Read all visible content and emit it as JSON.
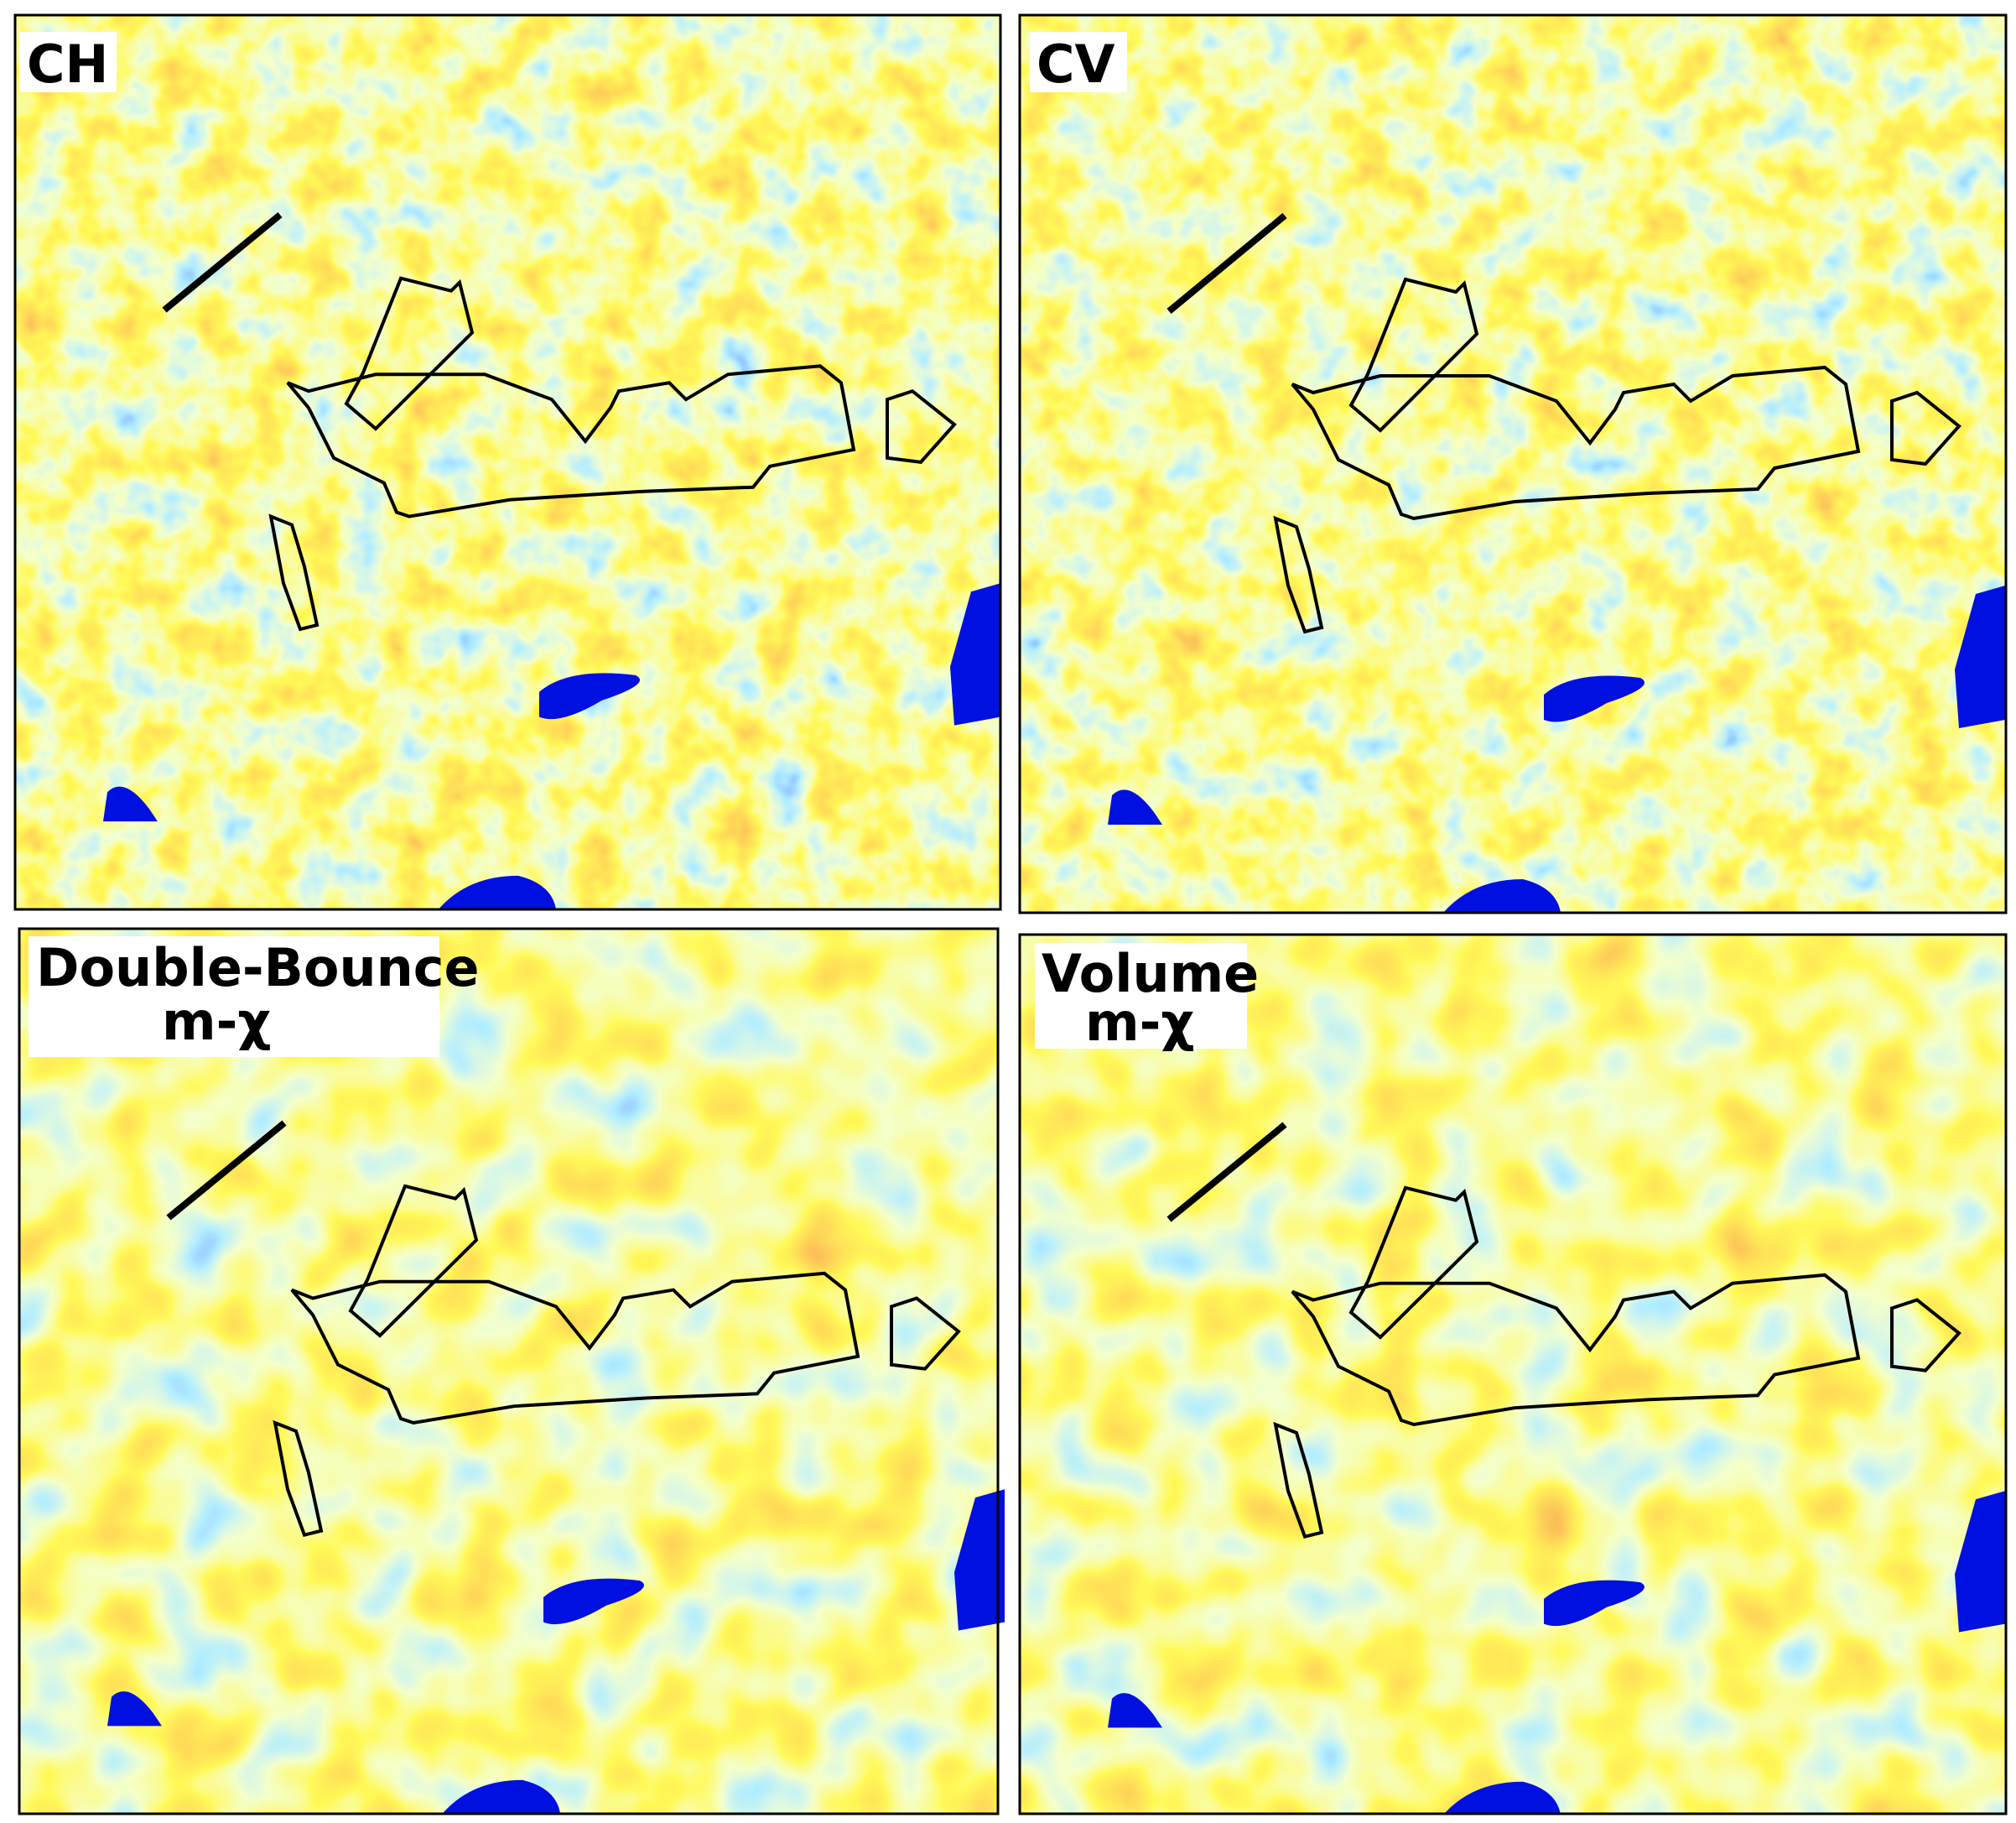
{
  "panels": [
    {
      "label": [
        "CH"
      ]
    },
    {
      "label": [
        "CV"
      ]
    },
    {
      "label": [
        "Double-Bounce",
        "m-χ"
      ]
    },
    {
      "label": [
        "Volume",
        "m-χ"
      ]
    }
  ]
}
